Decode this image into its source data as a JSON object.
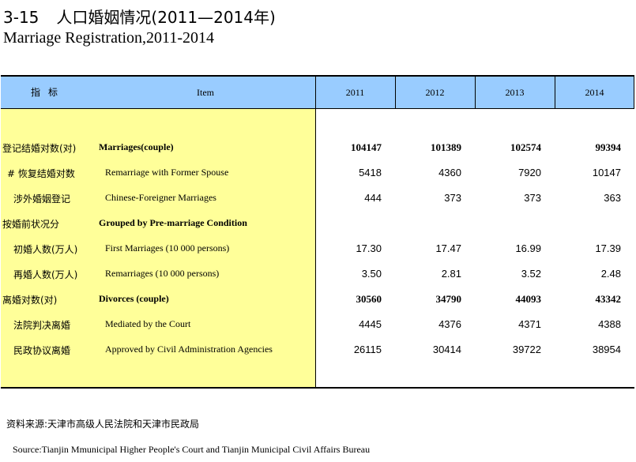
{
  "title": {
    "number": "3-15",
    "cn": "人口婚姻情况(2011—2014年)",
    "en": "Marriage Registration,2011-2014"
  },
  "header": {
    "indicator_cn": "指标",
    "item_en": "Item",
    "years": [
      "2011",
      "2012",
      "2013",
      "2014"
    ]
  },
  "rows": [
    {
      "cn": "登记结婚对数(对)",
      "en": "Marriages(couple)",
      "values": [
        "104147",
        "101389",
        "102574",
        "99394"
      ],
      "bold": true,
      "indent": false
    },
    {
      "cn": "# 恢复结婚对数",
      "en": "Remarriage with Former Spouse",
      "values": [
        "5418",
        "4360",
        "7920",
        "10147"
      ],
      "bold": false,
      "indent": true
    },
    {
      "cn": "涉外婚姻登记",
      "en": "Chinese-Foreigner Marriages",
      "values": [
        "444",
        "373",
        "373",
        "363"
      ],
      "bold": false,
      "indent": true
    },
    {
      "cn": "按婚前状况分",
      "en": "Grouped by Pre-marriage Condition",
      "values": [
        "",
        "",
        "",
        ""
      ],
      "bold": true,
      "indent": false
    },
    {
      "cn": "初婚人数(万人)",
      "en": "First Marriages (10 000 persons)",
      "values": [
        "17.30",
        "17.47",
        "16.99",
        "17.39"
      ],
      "bold": false,
      "indent": true
    },
    {
      "cn": "再婚人数(万人)",
      "en": "Remarriages (10 000 persons)",
      "values": [
        "3.50",
        "2.81",
        "3.52",
        "2.48"
      ],
      "bold": false,
      "indent": true
    },
    {
      "cn": "离婚对数(对)",
      "en": "Divorces (couple)",
      "values": [
        "30560",
        "34790",
        "44093",
        "43342"
      ],
      "bold": true,
      "indent": false
    },
    {
      "cn": "法院判决离婚",
      "en": "Mediated by the Court",
      "values": [
        "4445",
        "4376",
        "4371",
        "4388"
      ],
      "bold": false,
      "indent": true
    },
    {
      "cn": "民政协议离婚",
      "en": "Approved by Civil Administration Agencies",
      "values": [
        "26115",
        "30414",
        "39722",
        "38954"
      ],
      "bold": false,
      "indent": true
    }
  ],
  "source": {
    "cn": "资料来源:天津市高级人民法院和天津市民政局",
    "en": "Source:Tianjin Mmunicipal Higher People's Court and Tianjin Municipal Civil Affairs Bureau"
  }
}
